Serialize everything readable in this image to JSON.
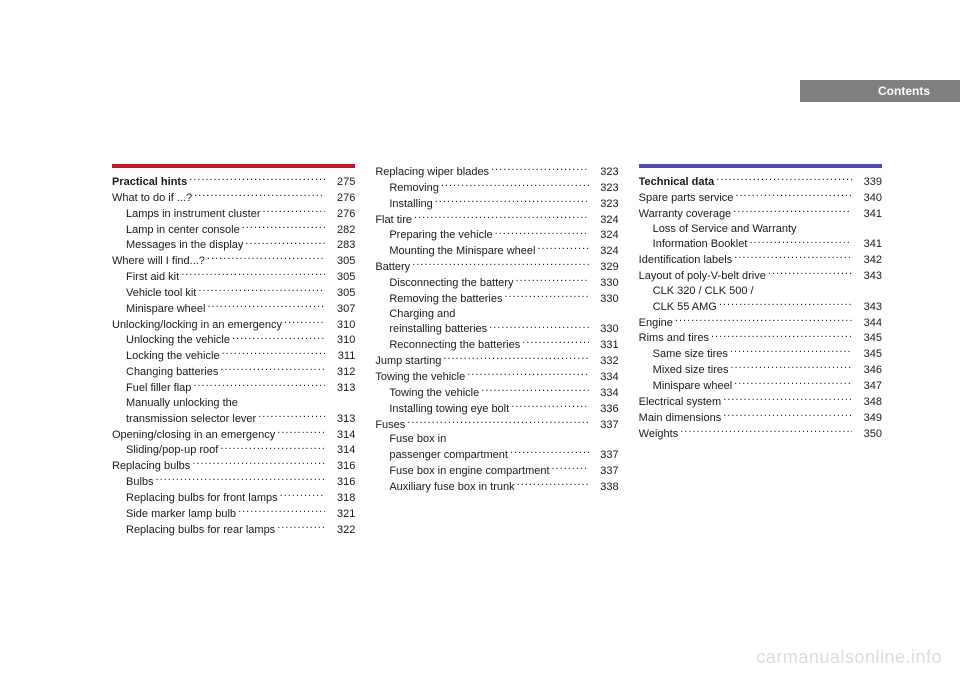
{
  "header": {
    "label": "Contents"
  },
  "columns": [
    {
      "divider_color": "red",
      "rows": [
        {
          "label": "Practical hints",
          "page": "275",
          "indent": 0,
          "bold": true
        },
        {
          "label": "What to do if ...?",
          "page": "276",
          "indent": 0
        },
        {
          "label": "Lamps in instrument cluster",
          "page": "276",
          "indent": 1
        },
        {
          "label": "Lamp in center console",
          "page": "282",
          "indent": 1
        },
        {
          "label": "Messages in the display",
          "page": "283",
          "indent": 1
        },
        {
          "label": "Where will I find...?",
          "page": "305",
          "indent": 0
        },
        {
          "label": "First aid kit",
          "page": "305",
          "indent": 1
        },
        {
          "label": "Vehicle tool kit",
          "page": "305",
          "indent": 1
        },
        {
          "label": "Minispare wheel",
          "page": "307",
          "indent": 1
        },
        {
          "label": "Unlocking/locking in an emergency",
          "page": "310",
          "indent": 0
        },
        {
          "label": "Unlocking the vehicle",
          "page": "310",
          "indent": 1
        },
        {
          "label": "Locking the vehicle",
          "page": "311",
          "indent": 1
        },
        {
          "label": "Changing batteries",
          "page": "312",
          "indent": 1
        },
        {
          "label": "Fuel filler flap",
          "page": "313",
          "indent": 1
        },
        {
          "label": "Manually unlocking the",
          "page": "",
          "indent": 1,
          "continuation": true
        },
        {
          "label": "transmission selector lever",
          "page": "313",
          "indent": 1
        },
        {
          "label": "Opening/closing in an emergency",
          "page": "314",
          "indent": 0
        },
        {
          "label": "Sliding/pop-up roof",
          "page": "314",
          "indent": 1
        },
        {
          "label": "Replacing bulbs",
          "page": "316",
          "indent": 0
        },
        {
          "label": "Bulbs",
          "page": "316",
          "indent": 1
        },
        {
          "label": "Replacing bulbs for front lamps",
          "page": "318",
          "indent": 1
        },
        {
          "label": "Side marker lamp bulb",
          "page": "321",
          "indent": 1
        },
        {
          "label": "Replacing bulbs for rear lamps",
          "page": "322",
          "indent": 1
        }
      ]
    },
    {
      "divider_color": "",
      "rows": [
        {
          "label": "Replacing wiper blades",
          "page": "323",
          "indent": 0
        },
        {
          "label": "Removing",
          "page": "323",
          "indent": 1
        },
        {
          "label": "Installing",
          "page": "323",
          "indent": 1
        },
        {
          "label": "Flat tire",
          "page": "324",
          "indent": 0
        },
        {
          "label": "Preparing the vehicle",
          "page": "324",
          "indent": 1
        },
        {
          "label": "Mounting the Minispare wheel",
          "page": "324",
          "indent": 1
        },
        {
          "label": "Battery",
          "page": "329",
          "indent": 0
        },
        {
          "label": "Disconnecting the battery",
          "page": "330",
          "indent": 1
        },
        {
          "label": "Removing the batteries",
          "page": "330",
          "indent": 1
        },
        {
          "label": "Charging and",
          "page": "",
          "indent": 1,
          "continuation": true
        },
        {
          "label": "reinstalling batteries",
          "page": "330",
          "indent": 1
        },
        {
          "label": "Reconnecting the batteries",
          "page": "331",
          "indent": 1
        },
        {
          "label": "Jump starting",
          "page": "332",
          "indent": 0
        },
        {
          "label": "Towing the vehicle",
          "page": "334",
          "indent": 0
        },
        {
          "label": "Towing the vehicle",
          "page": "334",
          "indent": 1
        },
        {
          "label": "Installing towing eye bolt",
          "page": "336",
          "indent": 1
        },
        {
          "label": "Fuses",
          "page": "337",
          "indent": 0
        },
        {
          "label": "Fuse box in",
          "page": "",
          "indent": 1,
          "continuation": true
        },
        {
          "label": "passenger compartment",
          "page": "337",
          "indent": 1
        },
        {
          "label": "Fuse box in engine compartment",
          "page": "337",
          "indent": 1
        },
        {
          "label": "Auxiliary fuse box in trunk",
          "page": "338",
          "indent": 1
        }
      ]
    },
    {
      "divider_color": "blue",
      "rows": [
        {
          "label": "Technical data",
          "page": "339",
          "indent": 0,
          "bold": true
        },
        {
          "label": "Spare parts service",
          "page": "340",
          "indent": 0
        },
        {
          "label": "Warranty coverage",
          "page": "341",
          "indent": 0
        },
        {
          "label": "Loss of Service and Warranty",
          "page": "",
          "indent": 1,
          "continuation": true
        },
        {
          "label": "Information Booklet",
          "page": "341",
          "indent": 1
        },
        {
          "label": "Identification labels",
          "page": "342",
          "indent": 0
        },
        {
          "label": "Layout of poly-V-belt drive",
          "page": "343",
          "indent": 0
        },
        {
          "label": "CLK 320 / CLK 500 /",
          "page": "",
          "indent": 1,
          "continuation": true
        },
        {
          "label": "CLK 55 AMG",
          "page": "343",
          "indent": 1
        },
        {
          "label": "Engine",
          "page": "344",
          "indent": 0
        },
        {
          "label": "Rims and tires",
          "page": "345",
          "indent": 0
        },
        {
          "label": "Same size tires",
          "page": "345",
          "indent": 1
        },
        {
          "label": "Mixed size tires",
          "page": "346",
          "indent": 1
        },
        {
          "label": "Minispare wheel",
          "page": "347",
          "indent": 1
        },
        {
          "label": "Electrical system",
          "page": "348",
          "indent": 0
        },
        {
          "label": "Main dimensions",
          "page": "349",
          "indent": 0
        },
        {
          "label": "Weights",
          "page": "350",
          "indent": 0
        }
      ]
    }
  ],
  "watermark": "carmanualsonline.info"
}
